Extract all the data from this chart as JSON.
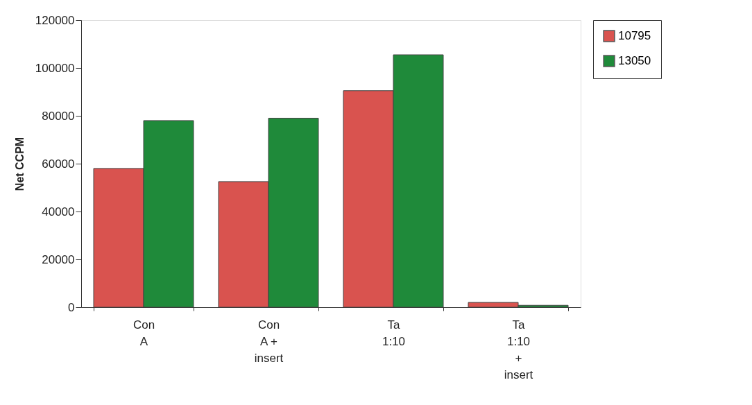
{
  "chart_data": {
    "type": "bar",
    "ylabel": "Net CCPM",
    "categories": [
      "Con\nA",
      "Con\nA +\ninsert",
      "Ta\n1:10",
      "Ta\n1:10\n+\ninsert"
    ],
    "series": [
      {
        "name": "10795",
        "color": "#d9534f",
        "values": [
          58000,
          52500,
          90500,
          2000
        ]
      },
      {
        "name": "13050",
        "color": "#1f8a3a",
        "values": [
          78000,
          79000,
          105500,
          800
        ]
      }
    ],
    "ylim": [
      0,
      120000
    ],
    "yticks": [
      0,
      20000,
      40000,
      60000,
      80000,
      100000,
      120000
    ],
    "grid": false,
    "legend": "right"
  }
}
